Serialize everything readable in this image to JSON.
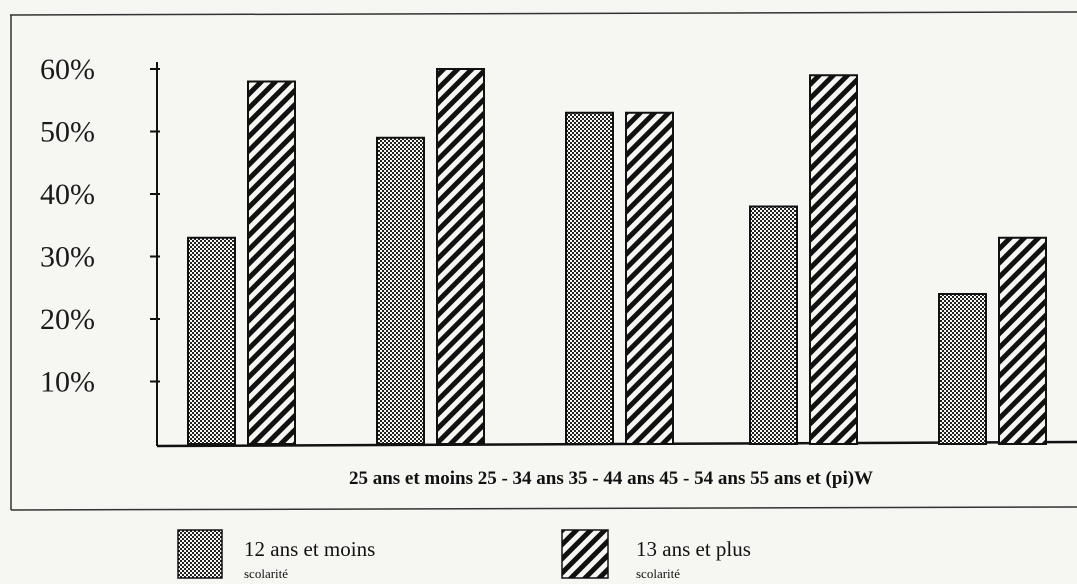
{
  "chart_data": {
    "type": "bar",
    "title": "",
    "xlabel": "",
    "ylabel": "",
    "ylim": [
      0,
      62
    ],
    "yticks": [
      "10%",
      "20%",
      "30%",
      "40%",
      "50%",
      "60%"
    ],
    "ytick_values": [
      10,
      20,
      30,
      40,
      50,
      60
    ],
    "categories_text": "25 ans et moins 25 - 34 ans 35 - 44 ans 45 - 54 ans 55 ans et (pi)W",
    "categories": [
      "25 ans et moins",
      "25 - 34 ans",
      "35 - 44 ans",
      "45 - 54 ans",
      "55 ans et (pi)W"
    ],
    "series": [
      {
        "name": "12 ans et moins",
        "sub": "scolarité",
        "pattern": "dots",
        "values": [
          33,
          49,
          53,
          38,
          24
        ]
      },
      {
        "name": "13 ans et plus",
        "sub": "scolarité",
        "pattern": "stripes",
        "values": [
          58,
          60,
          53,
          59,
          33
        ]
      }
    ],
    "grid": false,
    "legend": "bottom"
  },
  "colors": {
    "ink": "#111111",
    "paper": "#f6f6f3"
  }
}
